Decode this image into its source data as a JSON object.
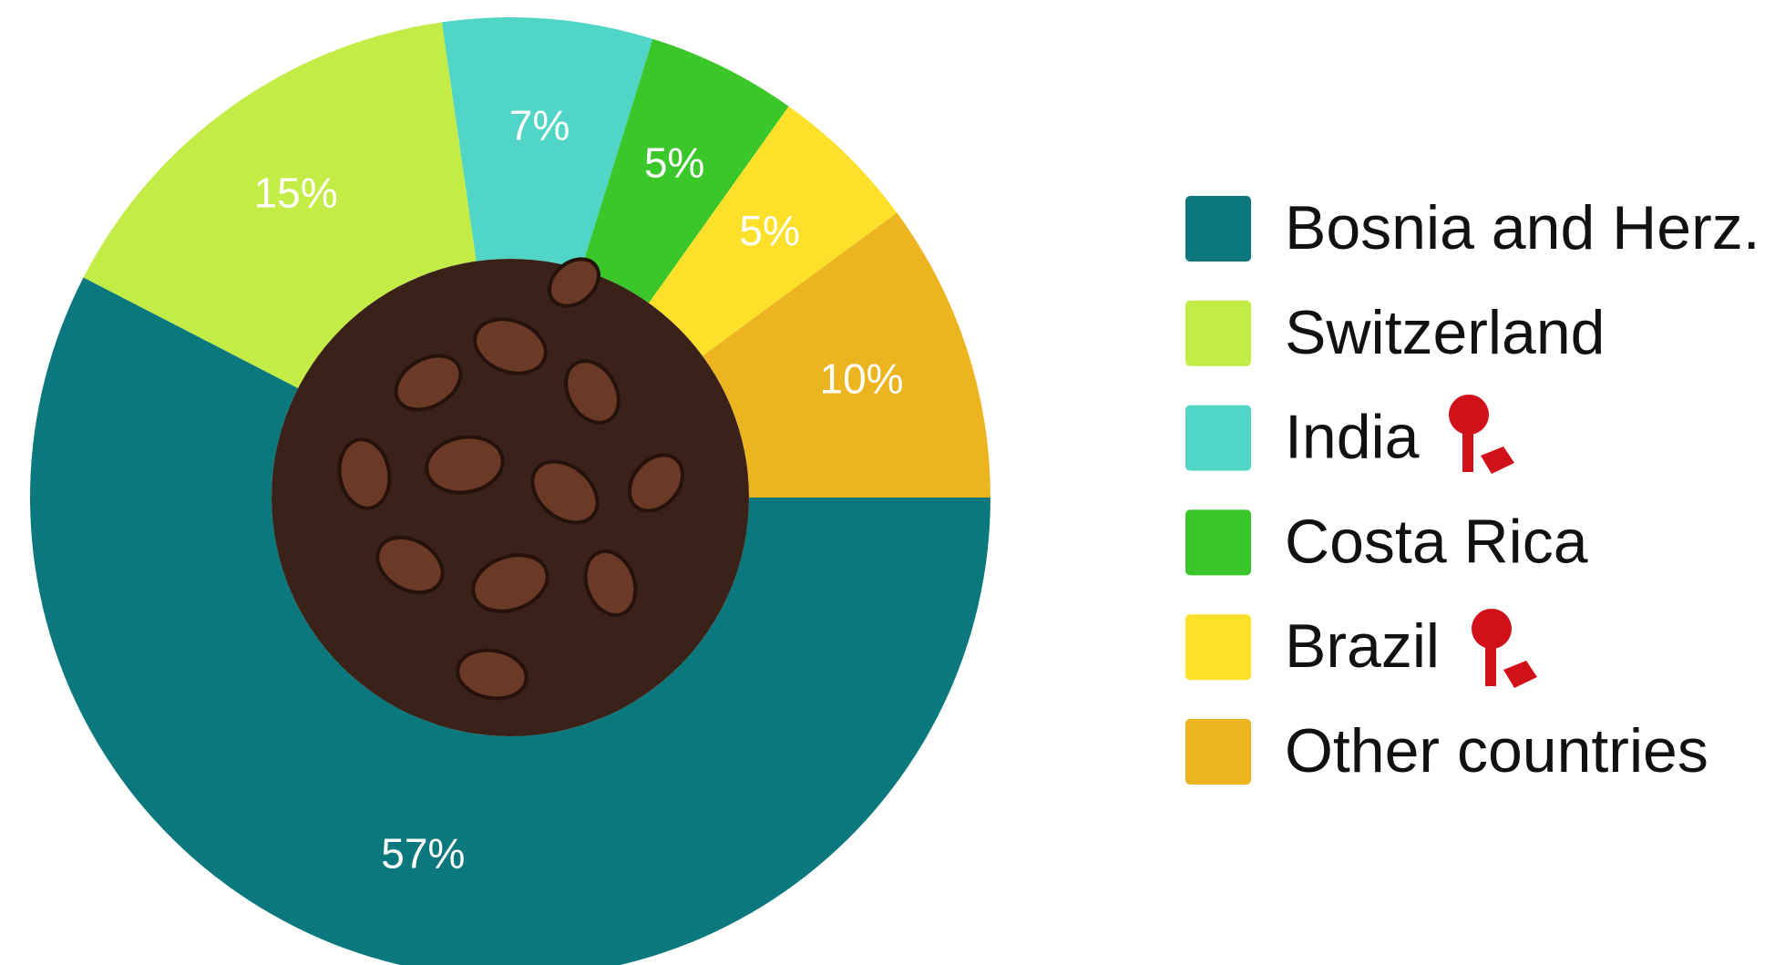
{
  "chart_data": {
    "type": "pie",
    "categories": [
      "Bosnia and Herz.",
      "Switzerland",
      "India",
      "Costa Rica",
      "Brazil",
      "Other countries"
    ],
    "values": [
      57,
      15,
      7,
      5,
      5,
      10
    ],
    "value_labels": [
      "57%",
      "15%",
      "7%",
      "5%",
      "5%",
      "10%"
    ],
    "colors": [
      "#0a787d",
      "#c4ec46",
      "#50d5c6",
      "#3bc72a",
      "#fde02a",
      "#ecb51f"
    ]
  }
}
